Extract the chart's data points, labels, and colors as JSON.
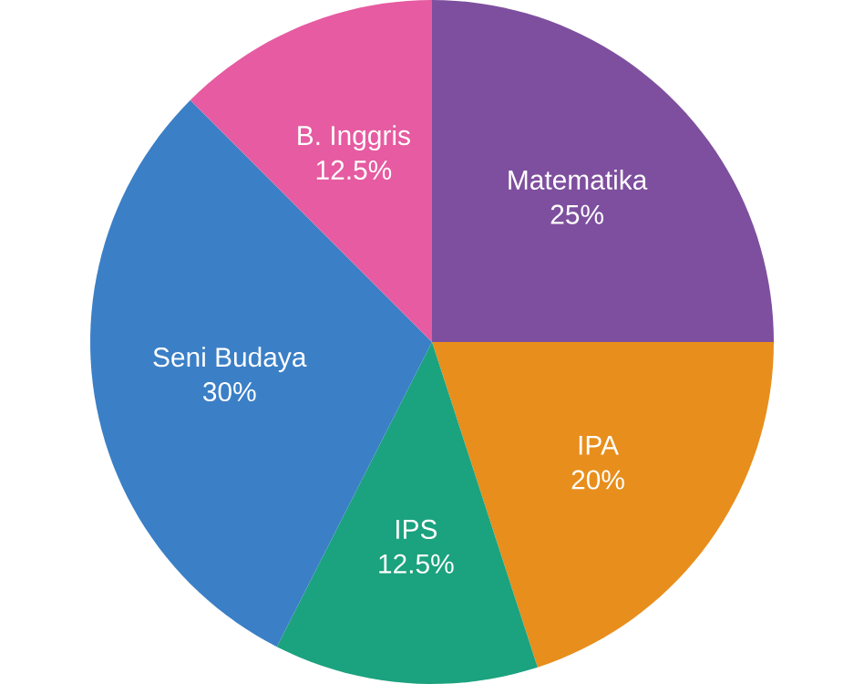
{
  "chart_data": {
    "type": "pie",
    "categories": [
      "Matematika",
      "IPA",
      "IPS",
      "Seni Budaya",
      "B. Inggris"
    ],
    "values": [
      25,
      20,
      12.5,
      30,
      12.5
    ],
    "value_labels": [
      "25%",
      "20%",
      "12.5%",
      "30%",
      "12.5%"
    ],
    "colors": [
      "#7e4f9e",
      "#e88e1c",
      "#1ba27e",
      "#3b7fc6",
      "#e65ba1"
    ]
  }
}
